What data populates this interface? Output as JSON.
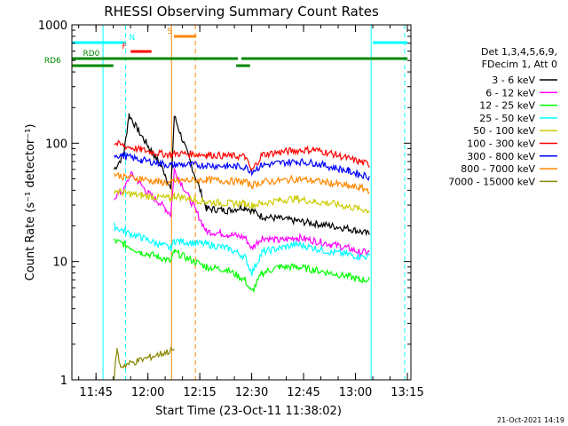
{
  "chart_data": {
    "type": "line",
    "title": "RHESSI Observing Summary Count Rates",
    "xlabel": "Start Time (23-Oct-11 11:38:02)",
    "ylabel": "Count Rate (s⁻¹ detector⁻¹)",
    "yscale": "log",
    "ylim": [
      1,
      1000
    ],
    "xlim_minutes": [
      0,
      98
    ],
    "y_tick_labels": [
      "1",
      "10",
      "100",
      "1000"
    ],
    "y_tick_values": [
      1,
      10,
      100,
      1000
    ],
    "x_tick_labels": [
      "11:45",
      "12:00",
      "12:15",
      "12:30",
      "12:45",
      "13:00",
      "13:15"
    ],
    "x_tick_minutes": [
      6.97,
      21.97,
      36.97,
      51.97,
      66.97,
      81.97,
      96.97
    ],
    "legend_header": [
      "Det 1,3,4,5,6,9,",
      "FDecim 1, Att 0"
    ],
    "legend_position": "right",
    "footer_timestamp": "21-Oct-2021 14:19",
    "segments": [
      [
        12.2,
        29.6
      ],
      [
        38.9,
        86.0
      ]
    ],
    "series": [
      {
        "name": "3 - 6 keV",
        "color": "#000000",
        "points": [
          [
            12.2,
            60
          ],
          [
            15,
            80
          ],
          [
            16.5,
            175
          ],
          [
            19,
            130
          ],
          [
            22,
            95
          ],
          [
            25,
            70
          ],
          [
            27,
            55
          ],
          [
            28.6,
            40
          ],
          [
            29.6,
            170
          ],
          [
            38.9,
            28
          ],
          [
            45,
            27
          ],
          [
            50,
            29
          ],
          [
            52,
            27
          ],
          [
            55,
            24
          ],
          [
            60,
            23
          ],
          [
            65,
            22
          ],
          [
            70,
            21
          ],
          [
            75,
            20
          ],
          [
            80,
            19
          ],
          [
            83,
            18
          ],
          [
            86,
            17
          ]
        ]
      },
      {
        "name": "6 - 12 keV",
        "color": "#ff00ff",
        "points": [
          [
            12.2,
            35
          ],
          [
            15,
            40
          ],
          [
            17,
            55
          ],
          [
            19,
            48
          ],
          [
            22,
            38
          ],
          [
            25,
            32
          ],
          [
            27,
            28
          ],
          [
            28.6,
            25
          ],
          [
            29.6,
            60
          ],
          [
            38.9,
            18
          ],
          [
            45,
            17
          ],
          [
            50,
            16
          ],
          [
            52,
            13
          ],
          [
            55,
            16
          ],
          [
            60,
            15
          ],
          [
            65,
            16
          ],
          [
            70,
            15
          ],
          [
            75,
            14
          ],
          [
            80,
            13
          ],
          [
            83,
            12
          ],
          [
            86,
            12
          ]
        ]
      },
      {
        "name": "12 - 25 keV",
        "color": "#00ff00",
        "points": [
          [
            12.2,
            15
          ],
          [
            15,
            14
          ],
          [
            20,
            12
          ],
          [
            25,
            11
          ],
          [
            28.6,
            10
          ],
          [
            29.6,
            12
          ],
          [
            38.9,
            9
          ],
          [
            45,
            8.5
          ],
          [
            50,
            7
          ],
          [
            52,
            5.5
          ],
          [
            55,
            8
          ],
          [
            60,
            9
          ],
          [
            65,
            9
          ],
          [
            70,
            8.5
          ],
          [
            75,
            8
          ],
          [
            80,
            7.5
          ],
          [
            83,
            7
          ],
          [
            86,
            7
          ]
        ]
      },
      {
        "name": "25 - 50 keV",
        "color": "#00ffff",
        "points": [
          [
            12.2,
            20
          ],
          [
            15,
            18
          ],
          [
            20,
            16
          ],
          [
            25,
            14
          ],
          [
            28.6,
            13
          ],
          [
            29.6,
            15
          ],
          [
            38.9,
            14
          ],
          [
            45,
            13
          ],
          [
            50,
            11
          ],
          [
            52,
            8
          ],
          [
            55,
            12
          ],
          [
            60,
            13
          ],
          [
            65,
            14
          ],
          [
            70,
            13
          ],
          [
            75,
            12
          ],
          [
            80,
            11.5
          ],
          [
            83,
            11
          ],
          [
            86,
            11
          ]
        ]
      },
      {
        "name": "50 - 100 keV",
        "color": "#cccc00",
        "points": [
          [
            12.2,
            40
          ],
          [
            15,
            38
          ],
          [
            20,
            36
          ],
          [
            25,
            35
          ],
          [
            28.6,
            34
          ],
          [
            29.6,
            36
          ],
          [
            38.9,
            32
          ],
          [
            45,
            31
          ],
          [
            50,
            31
          ],
          [
            52,
            30
          ],
          [
            55,
            31
          ],
          [
            60,
            33
          ],
          [
            65,
            34
          ],
          [
            70,
            32
          ],
          [
            75,
            31
          ],
          [
            80,
            29
          ],
          [
            83,
            28
          ],
          [
            86,
            27
          ]
        ]
      },
      {
        "name": "100 - 300 keV",
        "color": "#ff0000",
        "points": [
          [
            12.2,
            100
          ],
          [
            15,
            95
          ],
          [
            20,
            88
          ],
          [
            25,
            82
          ],
          [
            28.6,
            80
          ],
          [
            29.6,
            82
          ],
          [
            38.9,
            80
          ],
          [
            45,
            78
          ],
          [
            50,
            77
          ],
          [
            52,
            58
          ],
          [
            55,
            80
          ],
          [
            60,
            84
          ],
          [
            65,
            87
          ],
          [
            70,
            88
          ],
          [
            75,
            82
          ],
          [
            80,
            74
          ],
          [
            83,
            70
          ],
          [
            86,
            66
          ]
        ]
      },
      {
        "name": "300 - 800 keV",
        "color": "#0000ff",
        "points": [
          [
            12.2,
            80
          ],
          [
            15,
            78
          ],
          [
            20,
            72
          ],
          [
            25,
            68
          ],
          [
            28.6,
            65
          ],
          [
            29.6,
            66
          ],
          [
            38.9,
            65
          ],
          [
            45,
            64
          ],
          [
            50,
            63
          ],
          [
            52,
            58
          ],
          [
            55,
            65
          ],
          [
            60,
            68
          ],
          [
            65,
            70
          ],
          [
            70,
            68
          ],
          [
            75,
            63
          ],
          [
            80,
            58
          ],
          [
            83,
            55
          ],
          [
            86,
            52
          ]
        ]
      },
      {
        "name": "800 - 7000 keV",
        "color": "#ff8800",
        "points": [
          [
            12.2,
            55
          ],
          [
            15,
            52
          ],
          [
            20,
            50
          ],
          [
            25,
            47
          ],
          [
            28.6,
            46
          ],
          [
            29.6,
            48
          ],
          [
            38.9,
            49
          ],
          [
            45,
            48
          ],
          [
            50,
            47
          ],
          [
            52,
            44
          ],
          [
            55,
            47
          ],
          [
            60,
            48
          ],
          [
            65,
            50
          ],
          [
            70,
            48
          ],
          [
            75,
            46
          ],
          [
            80,
            43
          ],
          [
            83,
            42
          ],
          [
            86,
            40
          ]
        ]
      },
      {
        "name": "7000 - 15000 keV",
        "color": "#888800",
        "points": [
          [
            12.2,
            1
          ],
          [
            13,
            1.8
          ],
          [
            14,
            1.3
          ],
          [
            29.6,
            1.8
          ]
        ]
      }
    ],
    "vertical_markers": [
      {
        "minute": 9.0,
        "color": "#00ffff",
        "style": "solid"
      },
      {
        "minute": 15.5,
        "color": "#00ffff",
        "style": "dashed"
      },
      {
        "minute": 28.8,
        "color": "#ff8800",
        "style": "solid"
      },
      {
        "minute": 35.7,
        "color": "#ff8800",
        "style": "dashed"
      },
      {
        "minute": 86.5,
        "color": "#00ffff",
        "style": "solid"
      },
      {
        "minute": 96.2,
        "color": "#00ffff",
        "style": "dashed"
      }
    ],
    "state_bars": [
      {
        "label": "N",
        "color": "#00ffff",
        "start": 0,
        "end": 15.3,
        "label_at": 16.5,
        "level": 1
      },
      {
        "label": "N",
        "color": "#00ffff",
        "start": 87.0,
        "end": 97.0,
        "label_at": null,
        "level": 1
      },
      {
        "label": "S",
        "color": "#ff8800",
        "start": 29.5,
        "end": 36.0,
        "label_at": 27.5,
        "level": 0
      },
      {
        "label": "F",
        "color": "#ff0000",
        "start": 17.0,
        "end": 23.0,
        "label_at": 14.5,
        "level": 2
      },
      {
        "label": "RD0",
        "color": "#008800",
        "start": 0,
        "end": 48.0,
        "label_at": 3.2,
        "level": 3
      },
      {
        "label": "",
        "color": "#008800",
        "start": 49.0,
        "end": 97.0,
        "label_at": null,
        "level": 3
      },
      {
        "label": "RD6",
        "color": "#008800",
        "start": 0,
        "end": 12.0,
        "label_at": -8.0,
        "level": 4
      },
      {
        "label": "",
        "color": "#008800",
        "start": 47.5,
        "end": 51.5,
        "label_at": null,
        "level": 4
      }
    ]
  }
}
